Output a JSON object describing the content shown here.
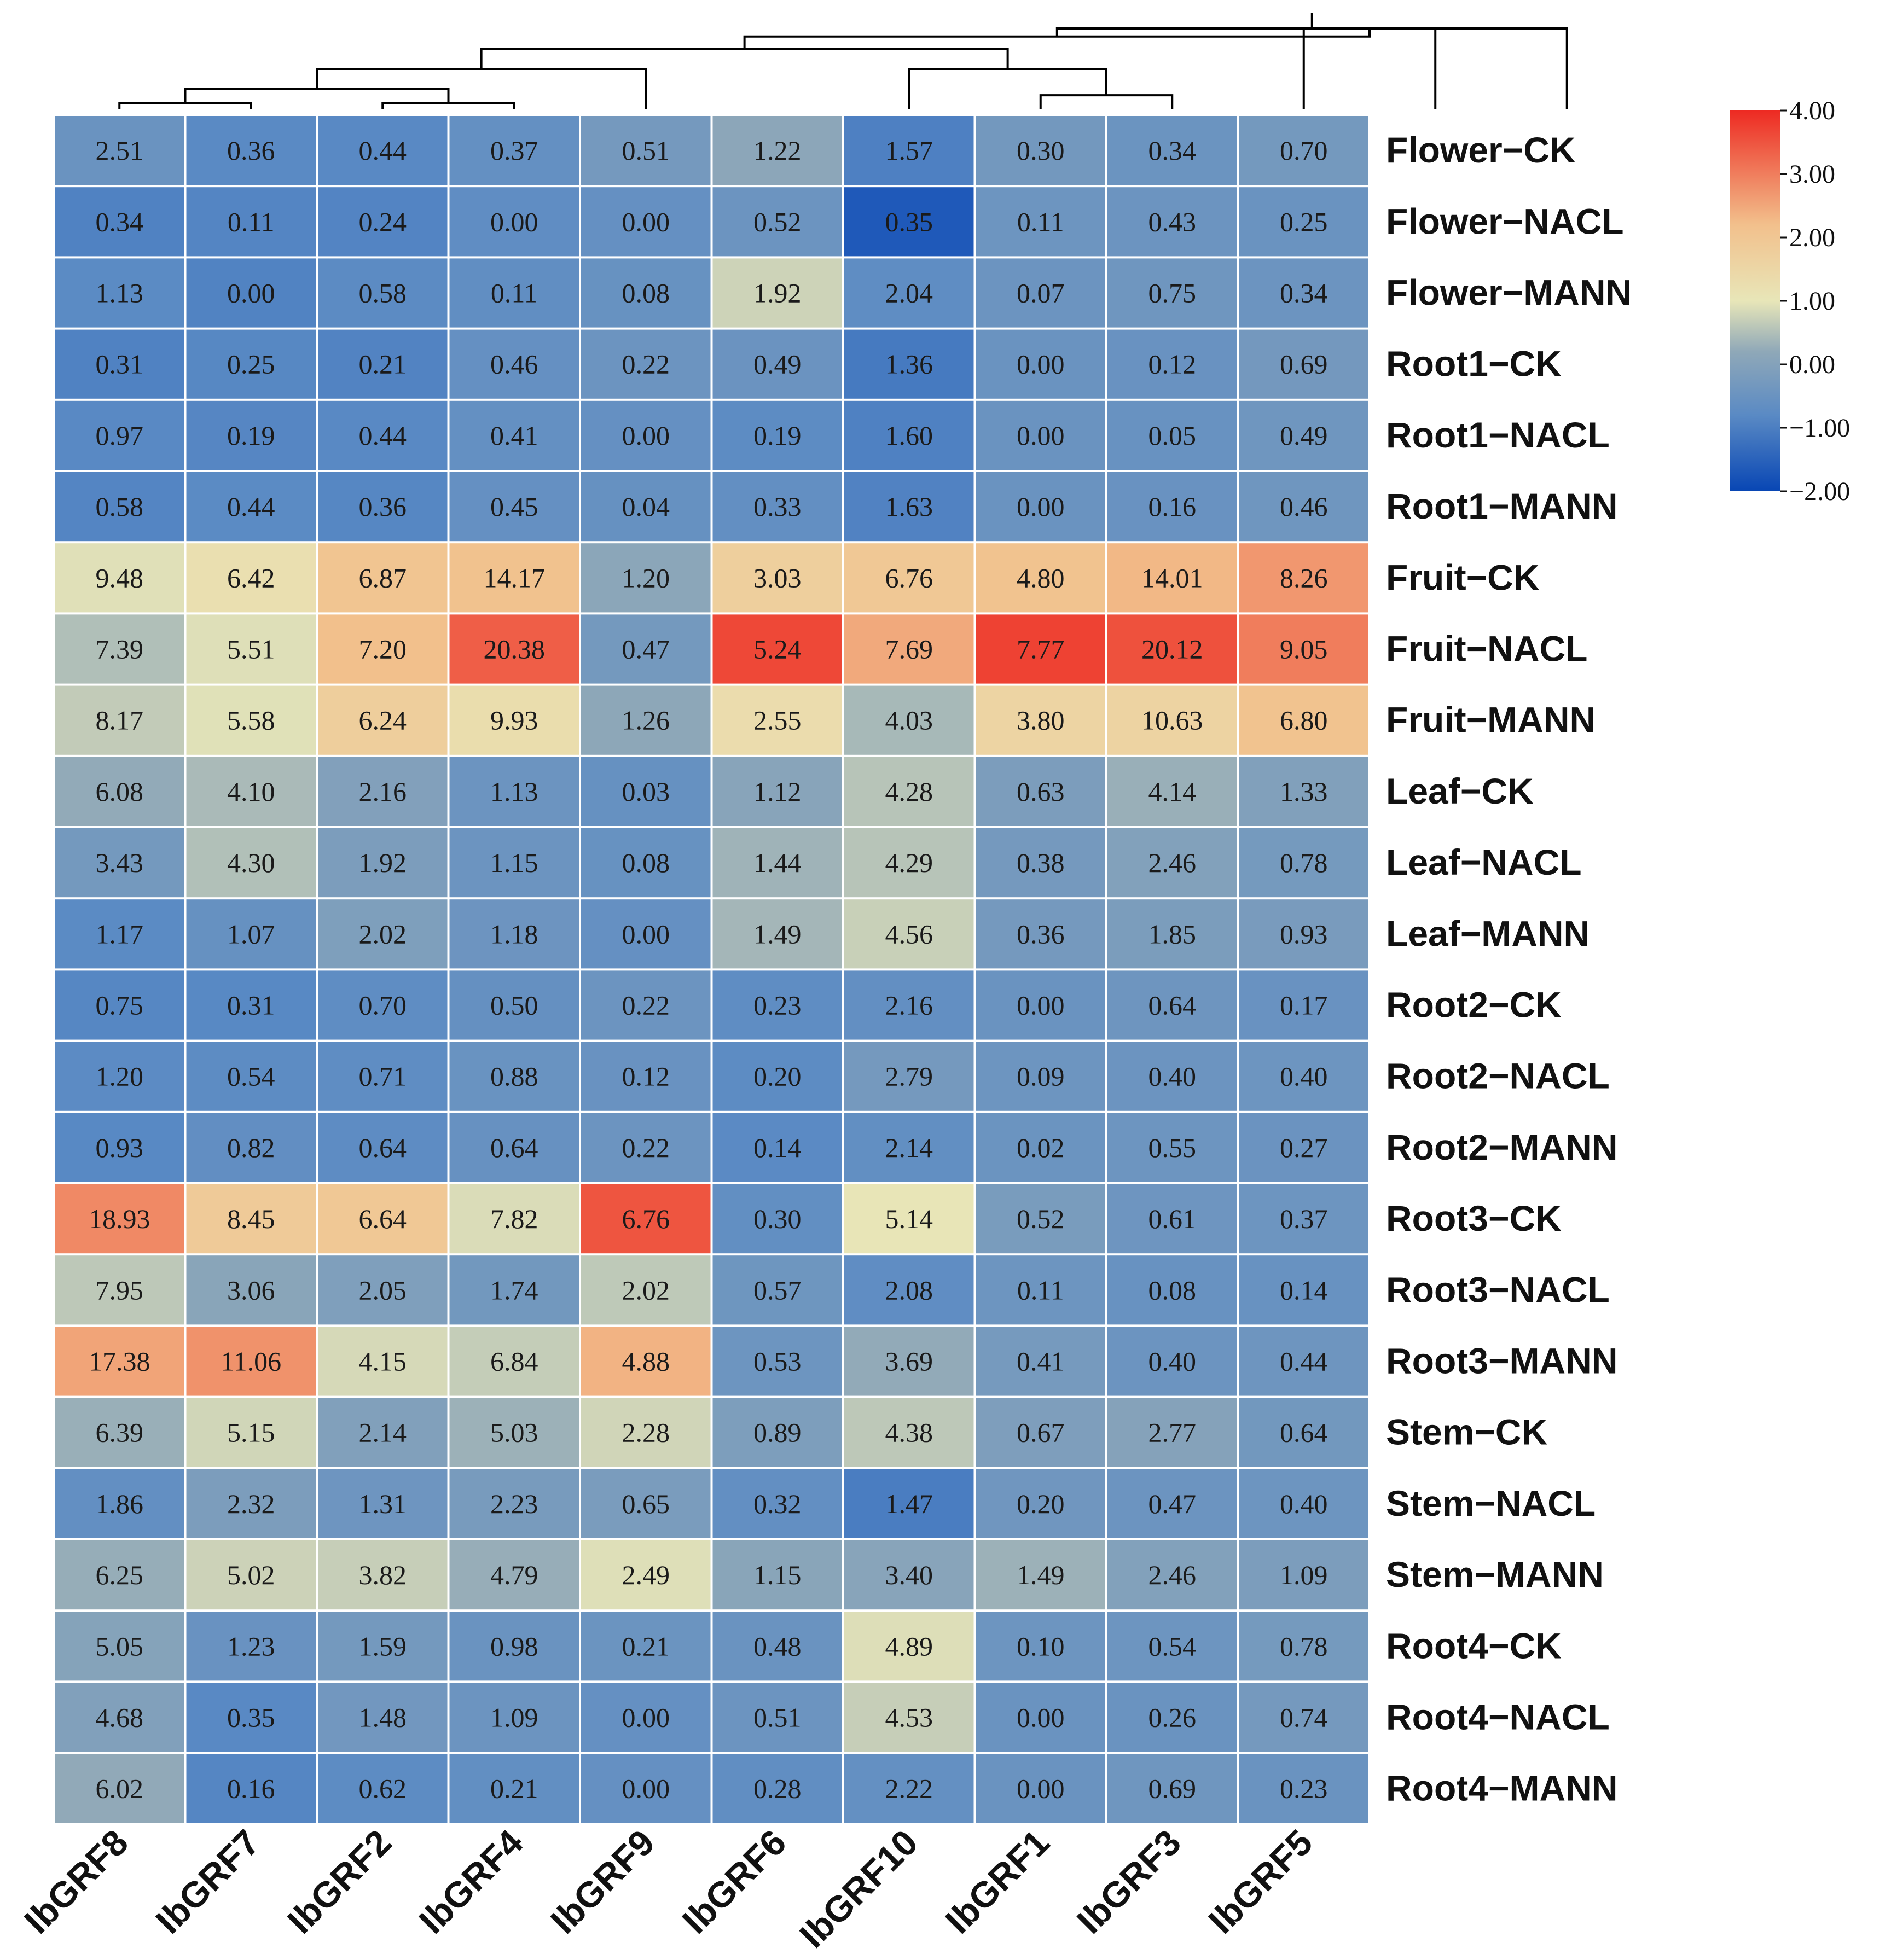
{
  "chart_data": {
    "type": "heatmap",
    "columns": [
      "IbGRF8",
      "IbGRF7",
      "IbGRF2",
      "IbGRF4",
      "IbGRF9",
      "IbGRF6",
      "IbGRF10",
      "IbGRF1",
      "IbGRF3",
      "IbGRF5"
    ],
    "rows": [
      "Flower−CK",
      "Flower−NACL",
      "Flower−MANN",
      "Root1−CK",
      "Root1−NACL",
      "Root1−MANN",
      "Fruit−CK",
      "Fruit−NACL",
      "Fruit−MANN",
      "Leaf−CK",
      "Leaf−NACL",
      "Leaf−MANN",
      "Root2−CK",
      "Root2−NACL",
      "Root2−MANN",
      "Root3−CK",
      "Root3−NACL",
      "Root3−MANN",
      "Stem−CK",
      "Stem−NACL",
      "Stem−MANN",
      "Root4−CK",
      "Root4−NACL",
      "Root4−MANN"
    ],
    "labels": [
      [
        "2.51",
        "0.36",
        "0.44",
        "0.37",
        "0.51",
        "1.22",
        "1.57",
        "0.30",
        "0.34",
        "0.70"
      ],
      [
        "0.34",
        "0.11",
        "0.24",
        "0.00",
        "0.00",
        "0.52",
        "0.35",
        "0.11",
        "0.43",
        "0.25"
      ],
      [
        "1.13",
        "0.00",
        "0.58",
        "0.11",
        "0.08",
        "1.92",
        "2.04",
        "0.07",
        "0.75",
        "0.34"
      ],
      [
        "0.31",
        "0.25",
        "0.21",
        "0.46",
        "0.22",
        "0.49",
        "1.36",
        "0.00",
        "0.12",
        "0.69"
      ],
      [
        "0.97",
        "0.19",
        "0.44",
        "0.41",
        "0.00",
        "0.19",
        "1.60",
        "0.00",
        "0.05",
        "0.49"
      ],
      [
        "0.58",
        "0.44",
        "0.36",
        "0.45",
        "0.04",
        "0.33",
        "1.63",
        "0.00",
        "0.16",
        "0.46"
      ],
      [
        "9.48",
        "6.42",
        "6.87",
        "14.17",
        "1.20",
        "3.03",
        "6.76",
        "4.80",
        "14.01",
        "8.26"
      ],
      [
        "7.39",
        "5.51",
        "7.20",
        "20.38",
        "0.47",
        "5.24",
        "7.69",
        "7.77",
        "20.12",
        "9.05"
      ],
      [
        "8.17",
        "5.58",
        "6.24",
        "9.93",
        "1.26",
        "2.55",
        "4.03",
        "3.80",
        "10.63",
        "6.80"
      ],
      [
        "6.08",
        "4.10",
        "2.16",
        "1.13",
        "0.03",
        "1.12",
        "4.28",
        "0.63",
        "4.14",
        "1.33"
      ],
      [
        "3.43",
        "4.30",
        "1.92",
        "1.15",
        "0.08",
        "1.44",
        "4.29",
        "0.38",
        "2.46",
        "0.78"
      ],
      [
        "1.17",
        "1.07",
        "2.02",
        "1.18",
        "0.00",
        "1.49",
        "4.56",
        "0.36",
        "1.85",
        "0.93"
      ],
      [
        "0.75",
        "0.31",
        "0.70",
        "0.50",
        "0.22",
        "0.23",
        "2.16",
        "0.00",
        "0.64",
        "0.17"
      ],
      [
        "1.20",
        "0.54",
        "0.71",
        "0.88",
        "0.12",
        "0.20",
        "2.79",
        "0.09",
        "0.40",
        "0.40"
      ],
      [
        "0.93",
        "0.82",
        "0.64",
        "0.64",
        "0.22",
        "0.14",
        "2.14",
        "0.02",
        "0.55",
        "0.27"
      ],
      [
        "18.93",
        "8.45",
        "6.64",
        "7.82",
        "6.76",
        "0.30",
        "5.14",
        "0.52",
        "0.61",
        "0.37"
      ],
      [
        "7.95",
        "3.06",
        "2.05",
        "1.74",
        "2.02",
        "0.57",
        "2.08",
        "0.11",
        "0.08",
        "0.14"
      ],
      [
        "17.38",
        "11.06",
        "4.15",
        "6.84",
        "4.88",
        "0.53",
        "3.69",
        "0.41",
        "0.40",
        "0.44"
      ],
      [
        "6.39",
        "5.15",
        "2.14",
        "5.03",
        "2.28",
        "0.89",
        "4.38",
        "0.67",
        "2.77",
        "0.64"
      ],
      [
        "1.86",
        "2.32",
        "1.31",
        "2.23",
        "0.65",
        "0.32",
        "1.47",
        "0.20",
        "0.47",
        "0.40"
      ],
      [
        "6.25",
        "5.02",
        "3.82",
        "4.79",
        "2.49",
        "1.15",
        "3.40",
        "1.49",
        "2.46",
        "1.09"
      ],
      [
        "5.05",
        "1.23",
        "1.59",
        "0.98",
        "0.21",
        "0.48",
        "4.89",
        "0.10",
        "0.54",
        "0.78"
      ],
      [
        "4.68",
        "0.35",
        "1.48",
        "1.09",
        "0.00",
        "0.51",
        "4.53",
        "0.00",
        "0.26",
        "0.74"
      ],
      [
        "6.02",
        "0.16",
        "0.62",
        "0.21",
        "0.00",
        "0.28",
        "2.22",
        "0.00",
        "0.69",
        "0.23"
      ]
    ],
    "colorbar": {
      "min": -2.0,
      "max": 4.0,
      "ticks": [
        "4.00",
        "3.00",
        "2.00",
        "1.00",
        "0.00",
        "−1.00",
        "−2.00"
      ],
      "tick_values": [
        4,
        3,
        2,
        1,
        0,
        -1,
        -2
      ],
      "colors": [
        "#0846b4",
        "#5a8ac4",
        "#8fa8b8",
        "#e8e6b8",
        "#f2c08c",
        "#ed2a22"
      ],
      "color_stops": [
        -2,
        -0.8,
        0.2,
        1,
        2.2,
        4
      ]
    },
    "dendrogram": {
      "merges": [
        {
          "a": 0,
          "b": 1,
          "height": 0.3
        },
        {
          "a": 2,
          "b": 3,
          "height": 0.3
        },
        {
          "a": 7,
          "b": 8,
          "height": 0.7
        },
        {
          "a": "m0",
          "b": "m1",
          "height": 1.0
        },
        {
          "a": "m3",
          "b": 4,
          "height": 2.0
        },
        {
          "a": 6,
          "b": "m2",
          "height": 2.0
        },
        {
          "a": 9,
          "b": 10,
          "height": 4.0
        },
        {
          "a": "m4",
          "b": "m5",
          "height": 3.0
        },
        {
          "a": "m7",
          "b": "m6",
          "height": 3.6
        },
        {
          "a": "m8",
          "b": 11,
          "height": 4.0
        }
      ],
      "max_height": 4.0
    }
  }
}
